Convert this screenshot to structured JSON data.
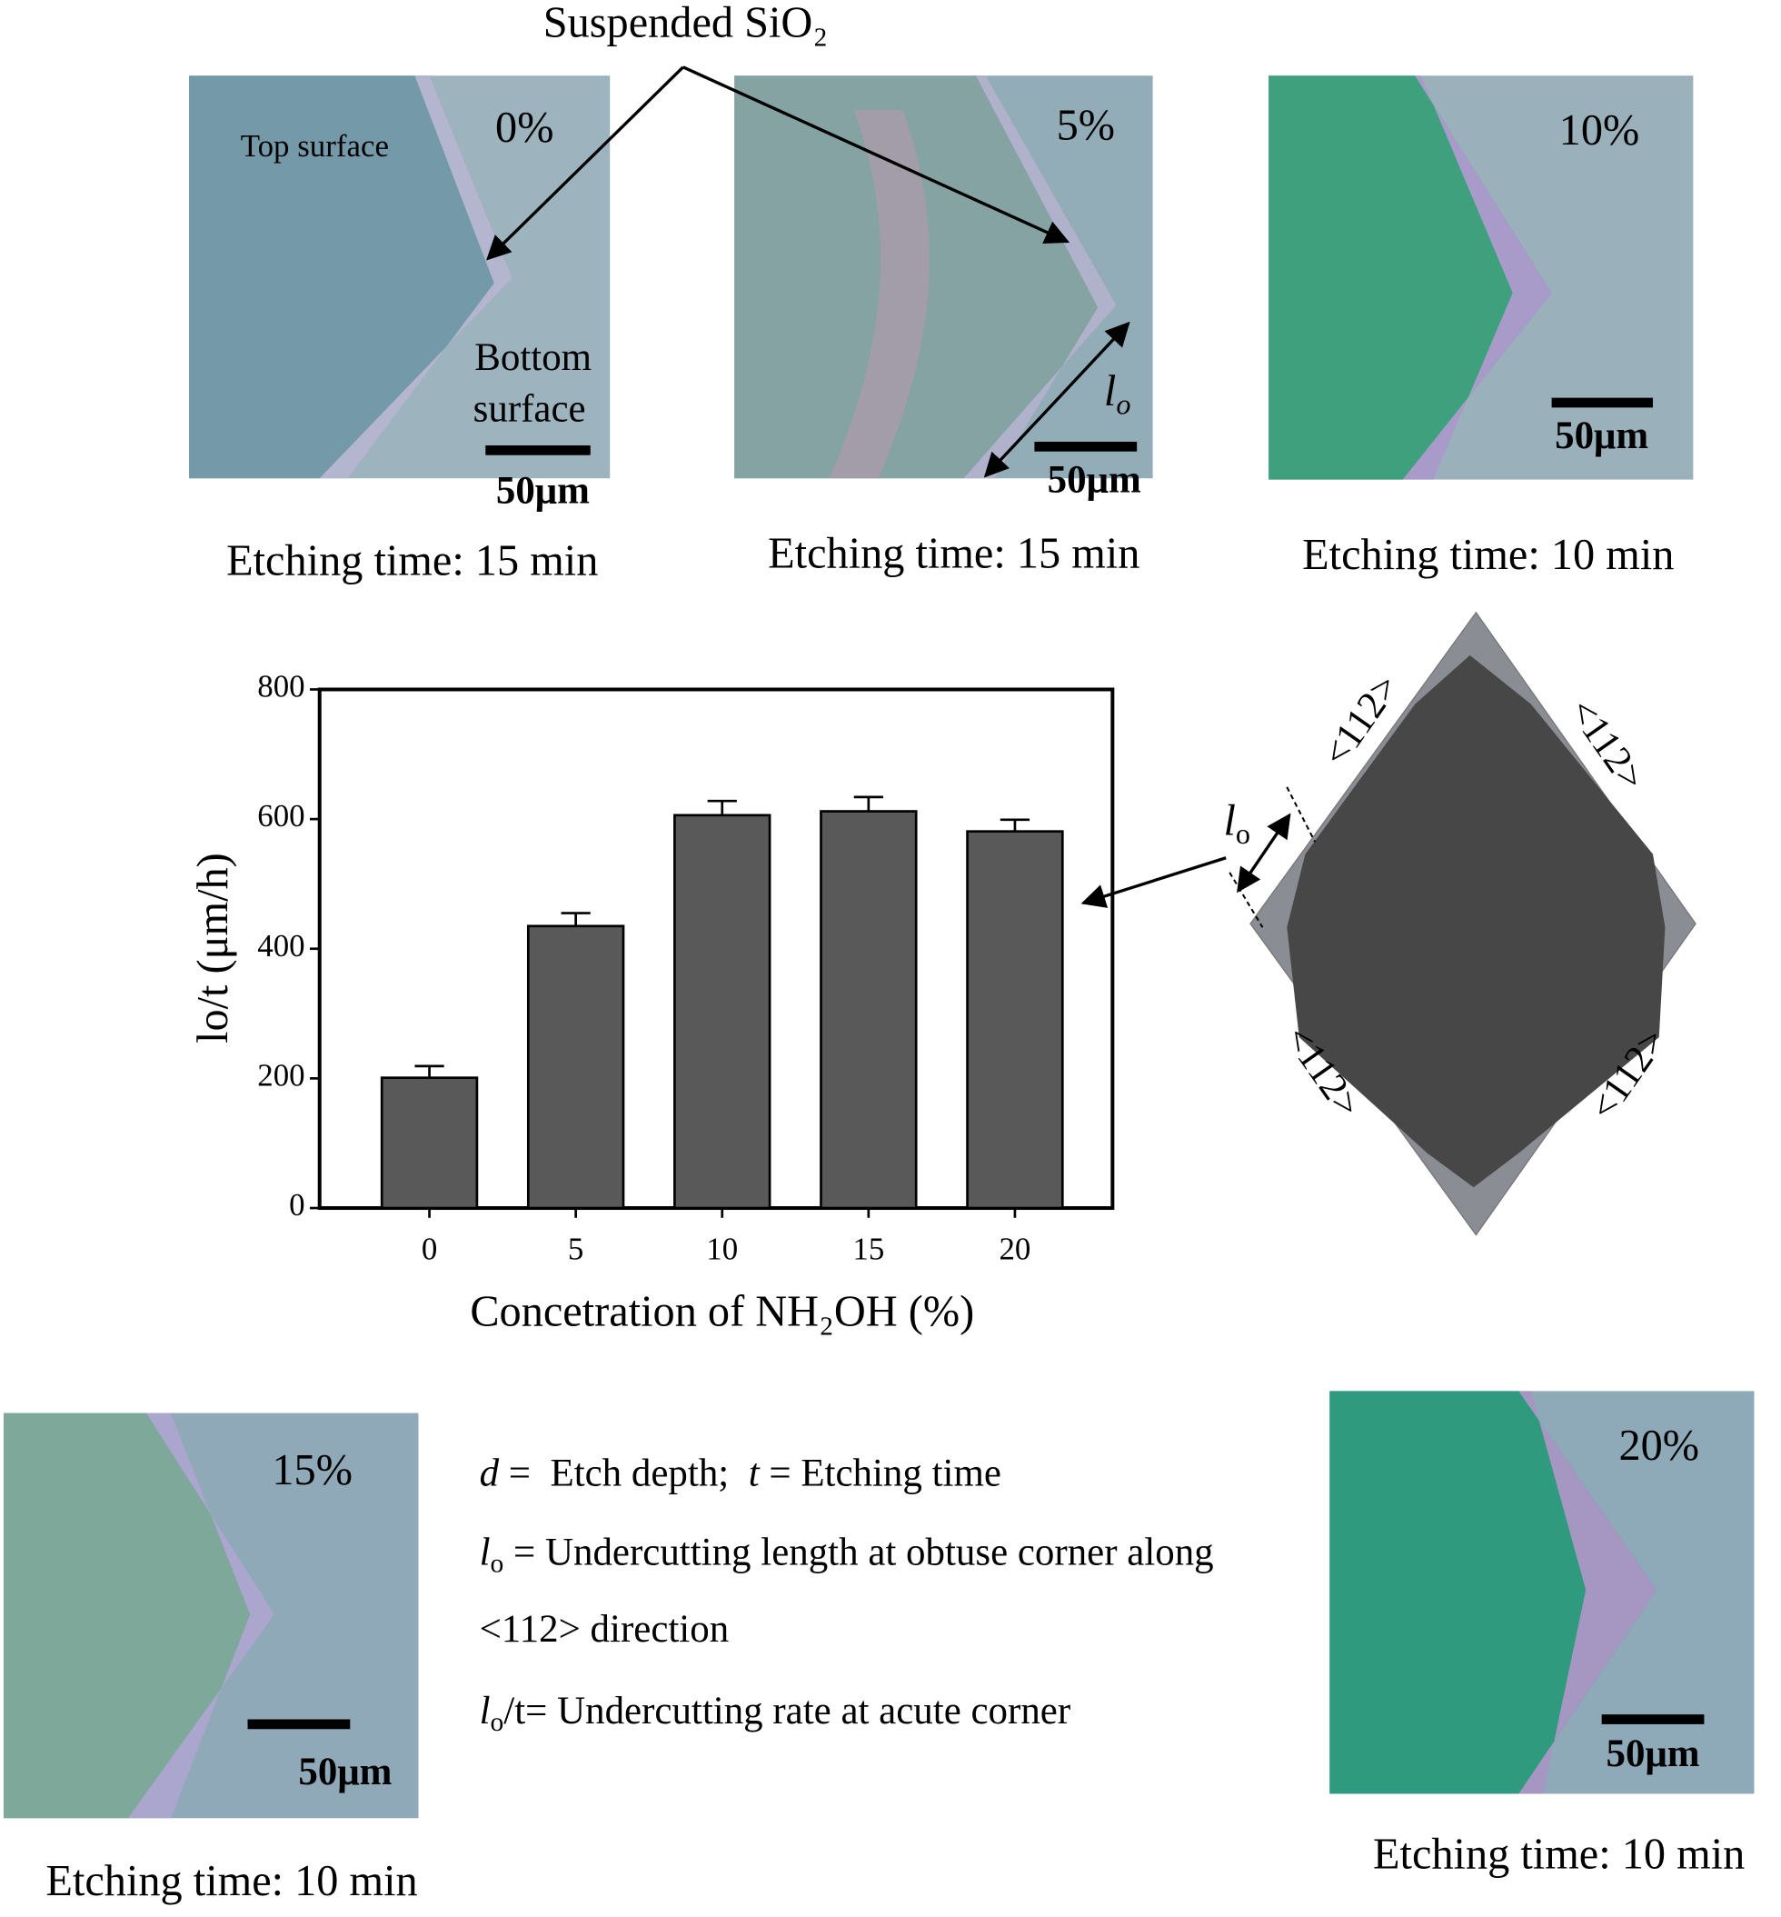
{
  "chart_data": {
    "type": "bar",
    "categories": [
      "0",
      "5",
      "10",
      "15",
      "20"
    ],
    "values": [
      201,
      435,
      606,
      612,
      581
    ],
    "errors": [
      18,
      20,
      22,
      22,
      18
    ],
    "color": "#595959",
    "ylim": [
      0,
      800
    ],
    "yticks": [
      0,
      200,
      400,
      600,
      800
    ],
    "y_label": "lo/t (μm/h)",
    "x_label": "Concetration of NH₂OH (%)",
    "grid": false
  },
  "callout": "Suspended SiO₂",
  "panels": [
    {
      "label": "0%",
      "top": "Top surface",
      "bottom": [
        "Bottom",
        "surface"
      ],
      "scale": "50μm",
      "time": "Etching time: 15 min"
    },
    {
      "label": "5%",
      "length": [
        "l",
        "o"
      ],
      "scale": "50μm",
      "time": "Etching time: 15 min"
    },
    {
      "label": "10%",
      "scale": "50μm",
      "time": "Etching time: 10 min"
    },
    {
      "label": "15%",
      "scale": "50μm",
      "time": "Etching time: 10 min"
    },
    {
      "label": "20%",
      "scale": "50μm",
      "time": "Etching time: 10 min"
    }
  ],
  "notes": [
    [
      "d",
      " =  Etch depth;  ",
      "t",
      " = Etching time"
    ],
    [
      "l",
      "o",
      " = Undercutting length at obtuse corner along"
    ],
    [
      "<112> direction"
    ],
    [
      "l",
      "o",
      "/t= Undercutting rate at acute corner"
    ]
  ],
  "diagram": {
    "directions": [
      "<112>",
      "<112>",
      "<112>",
      "<112>"
    ],
    "length": [
      "l",
      "o"
    ]
  }
}
